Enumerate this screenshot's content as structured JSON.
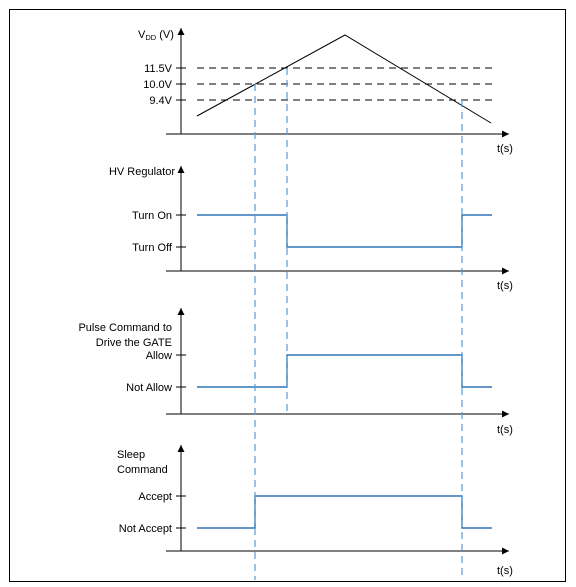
{
  "colors": {
    "signal": "#2E75B6",
    "guide": "#5B9BD5",
    "ink": "#000000",
    "frame": "#000000"
  },
  "vdd_panel": {
    "ylabel_main": "V",
    "ylabel_sub": "DD",
    "ylabel_unit": " (V)",
    "thresholds": [
      "11.5V",
      "10.0V",
      "9.4V"
    ],
    "xlabel": "t(s)"
  },
  "hv_regulator": {
    "title": "HV Regulator",
    "states": [
      "Turn On",
      "Turn Off"
    ],
    "xlabel": "t(s)"
  },
  "pulse_command": {
    "title_line1": "Pulse Command to",
    "title_line2": "Drive the GATE",
    "states": [
      "Allow",
      "Not Allow"
    ],
    "xlabel": "t(s)"
  },
  "sleep_command": {
    "title_line1": "Sleep",
    "title_line2": "Command",
    "states": [
      "Accept",
      "Not Accept"
    ],
    "xlabel": "t(s)"
  }
}
